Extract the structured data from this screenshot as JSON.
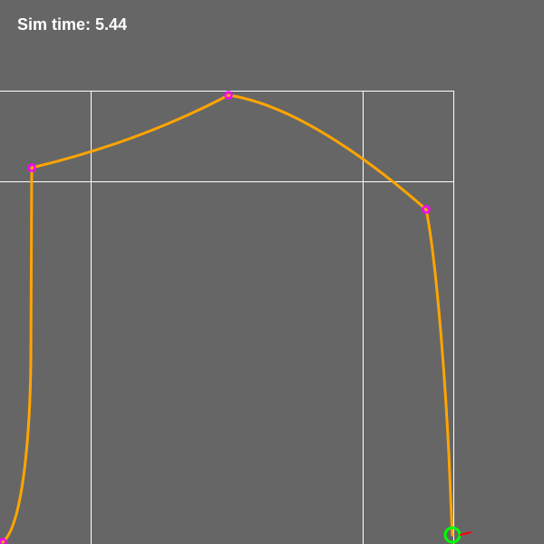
{
  "hud": {
    "sim_time_label": "Sim time: 5.44"
  },
  "colors": {
    "background": "#666666",
    "grid": "#ffffff",
    "trajectory": "#ffa500",
    "waypoint": "#ff00ff",
    "agent_ring": "#00ff00",
    "heading_indicator": "#ff0000"
  },
  "icons": {
    "waypoint": "waypoint-marker-icon",
    "agent": "agent-ring-icon",
    "heading": "heading-arrow-icon"
  }
}
